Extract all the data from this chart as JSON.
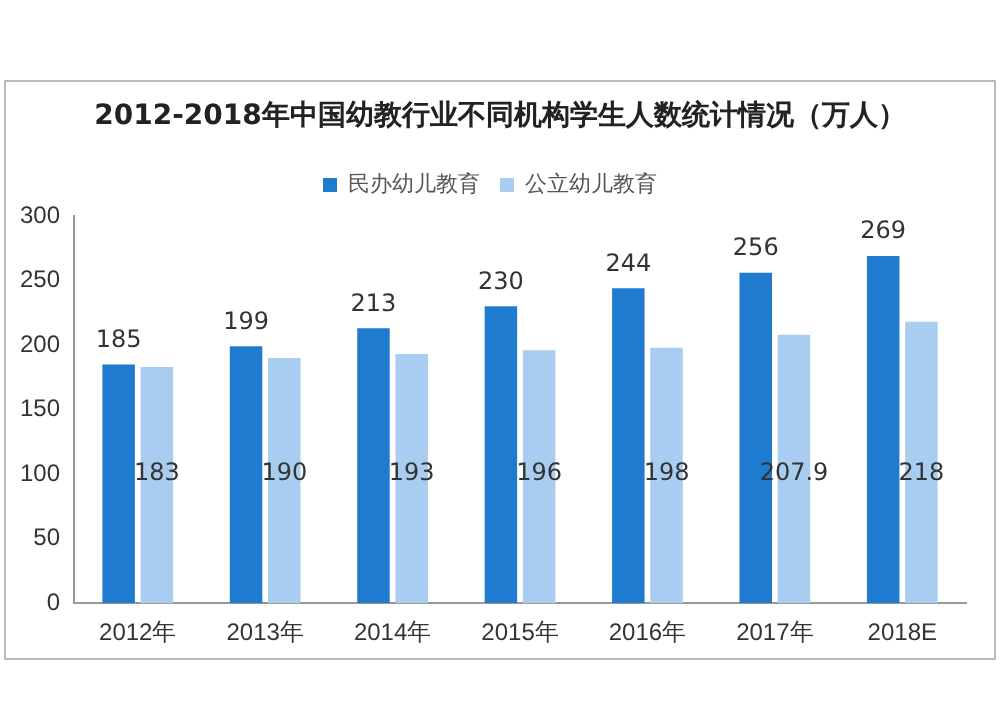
{
  "chart_data": {
    "type": "bar",
    "title": "2012-2018年中国幼教行业不同机构学生人数统计情况（万人）",
    "categories": [
      "2012年",
      "2013年",
      "2014年",
      "2015年",
      "2016年",
      "2017年",
      "2018E"
    ],
    "series": [
      {
        "name": "民办幼儿教育",
        "color": "#1f7bd0",
        "values": [
          185,
          199,
          213,
          230,
          244,
          256,
          269
        ]
      },
      {
        "name": "公立幼儿教育",
        "color": "#a9cdf0",
        "values": [
          183,
          190,
          193,
          196,
          198,
          207.9,
          218
        ]
      }
    ],
    "ylim": [
      0,
      300
    ],
    "yticks": [
      0,
      50,
      100,
      150,
      200,
      250,
      300
    ],
    "grid": false,
    "legend": "top",
    "data_labels": true
  }
}
